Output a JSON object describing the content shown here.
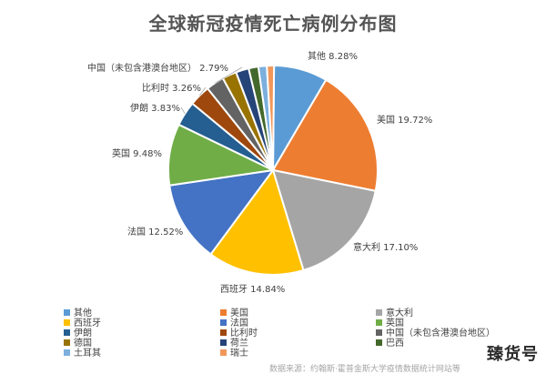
{
  "chart_data": {
    "type": "pie",
    "title": "全球新冠疫情死亡病例分布图",
    "label_format": "{name} {pct}",
    "series": [
      {
        "name": "其他",
        "value": 8.28,
        "label": "8.28%",
        "color": "#5b9bd5",
        "show_label": true
      },
      {
        "name": "美国",
        "value": 19.72,
        "label": "19.72%",
        "color": "#ed7d31",
        "show_label": true
      },
      {
        "name": "意大利",
        "value": 17.1,
        "label": "17.10%",
        "color": "#a5a5a5",
        "show_label": true
      },
      {
        "name": "西班牙",
        "value": 14.84,
        "label": "14.84%",
        "color": "#ffc000",
        "show_label": true
      },
      {
        "name": "法国",
        "value": 12.52,
        "label": "12.52%",
        "color": "#4472c4",
        "show_label": true
      },
      {
        "name": "英国",
        "value": 9.48,
        "label": "9.48%",
        "color": "#70ad47",
        "show_label": true
      },
      {
        "name": "伊朗",
        "value": 3.83,
        "label": "3.83%",
        "color": "#255e91",
        "show_label": true
      },
      {
        "name": "比利时",
        "value": 3.26,
        "label": "3.26%",
        "color": "#9e480e",
        "show_label": true
      },
      {
        "name": "中国（未包含港澳台地区）",
        "value": 2.79,
        "label": "2.79%",
        "color": "#636363",
        "show_label": true
      },
      {
        "name": "德国",
        "value": 2.2,
        "label": "",
        "color": "#997300",
        "show_label": false
      },
      {
        "name": "荷兰",
        "value": 2.0,
        "label": "",
        "color": "#264478",
        "show_label": false
      },
      {
        "name": "巴西",
        "value": 1.5,
        "label": "",
        "color": "#43682b",
        "show_label": false
      },
      {
        "name": "土耳其",
        "value": 1.3,
        "label": "",
        "color": "#7cafdd",
        "show_label": false
      },
      {
        "name": "瑞士",
        "value": 1.1,
        "label": "",
        "color": "#f1975a",
        "show_label": false
      }
    ],
    "legend": {
      "position": "bottom",
      "columns": 3
    }
  },
  "source_note": "数据来源：约翰斯·霍普金斯大学疫情数据统计网站等",
  "watermark": "臻货号"
}
